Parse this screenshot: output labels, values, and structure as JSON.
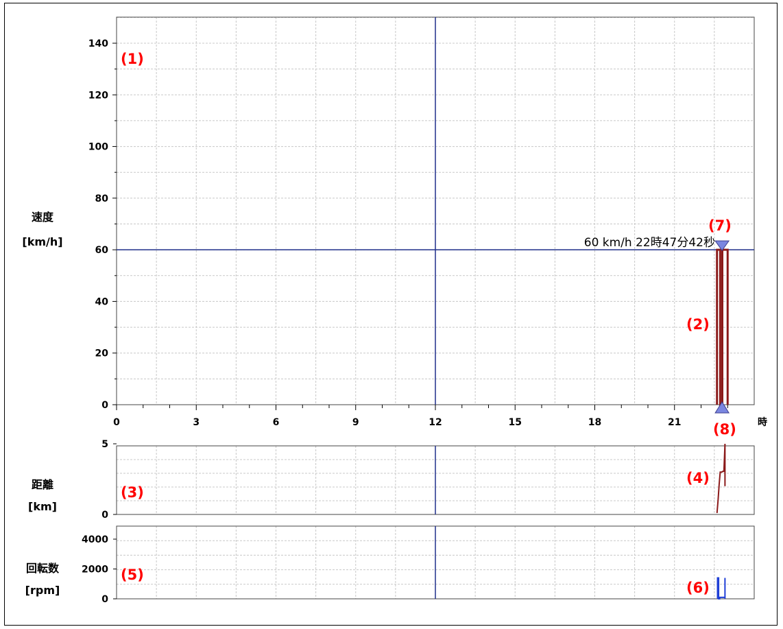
{
  "chart_data": [
    {
      "type": "line",
      "panel": "speed",
      "ylabel_line1": "速度",
      "ylabel_line2": "[km/h]",
      "xlabel": "時",
      "x_ticks": [
        "0",
        "3",
        "6",
        "9",
        "12",
        "15",
        "18",
        "21"
      ],
      "y_ticks": [
        "0",
        "20",
        "40",
        "60",
        "80",
        "100",
        "120",
        "140"
      ],
      "xlim": [
        0,
        24
      ],
      "ylim": [
        0,
        150
      ],
      "grid": true,
      "cursor": {
        "x": 12,
        "y": 60,
        "label": "60 km/h 22時47分42秒"
      },
      "series": [
        {
          "color": "#8b1a1a",
          "x": [
            22.6,
            22.6,
            22.72,
            22.72,
            22.8,
            22.8,
            23.0,
            23.0,
            23.0
          ],
          "y": [
            0,
            60,
            60,
            0,
            0,
            60,
            60,
            0,
            0
          ]
        }
      ],
      "markers": [
        {
          "shape": "triangle-down",
          "x": 22.79,
          "y": 60,
          "color": "#7a86e0"
        },
        {
          "shape": "triangle-up",
          "x": 22.79,
          "y": 0,
          "color": "#7a86e0"
        }
      ]
    },
    {
      "type": "line",
      "panel": "distance",
      "ylabel_line1": "距離",
      "ylabel_line2": "[km]",
      "y_ticks": [
        "0",
        "5"
      ],
      "xlim": [
        0,
        24
      ],
      "ylim": [
        0,
        5
      ],
      "grid": true,
      "series": [
        {
          "color": "#8b1a1a",
          "x": [
            22.6,
            22.64,
            22.68,
            22.72,
            22.78,
            22.82,
            22.86,
            22.9,
            22.9
          ],
          "y": [
            0.1,
            1.0,
            2.1,
            3.0,
            3.0,
            3.05,
            3.05,
            5.0,
            2.0
          ]
        }
      ]
    },
    {
      "type": "line",
      "panel": "rpm",
      "ylabel_line1": "回転数",
      "ylabel_line2": "[rpm]",
      "y_ticks": [
        "0",
        "2000",
        "4000"
      ],
      "xlim": [
        0,
        24
      ],
      "ylim": [
        0,
        5000
      ],
      "grid": true,
      "series": [
        {
          "color": "#1f3fd6",
          "x": [
            22.62,
            22.62,
            22.66,
            22.66,
            22.7,
            22.7,
            22.9,
            22.9,
            22.9
          ],
          "y": [
            0,
            1400,
            1400,
            0,
            0,
            100,
            100,
            1400,
            0
          ]
        }
      ]
    }
  ],
  "annotations": [
    "(1)",
    "(2)",
    "(3)",
    "(4)",
    "(5)",
    "(6)",
    "(7)",
    "(8)"
  ]
}
